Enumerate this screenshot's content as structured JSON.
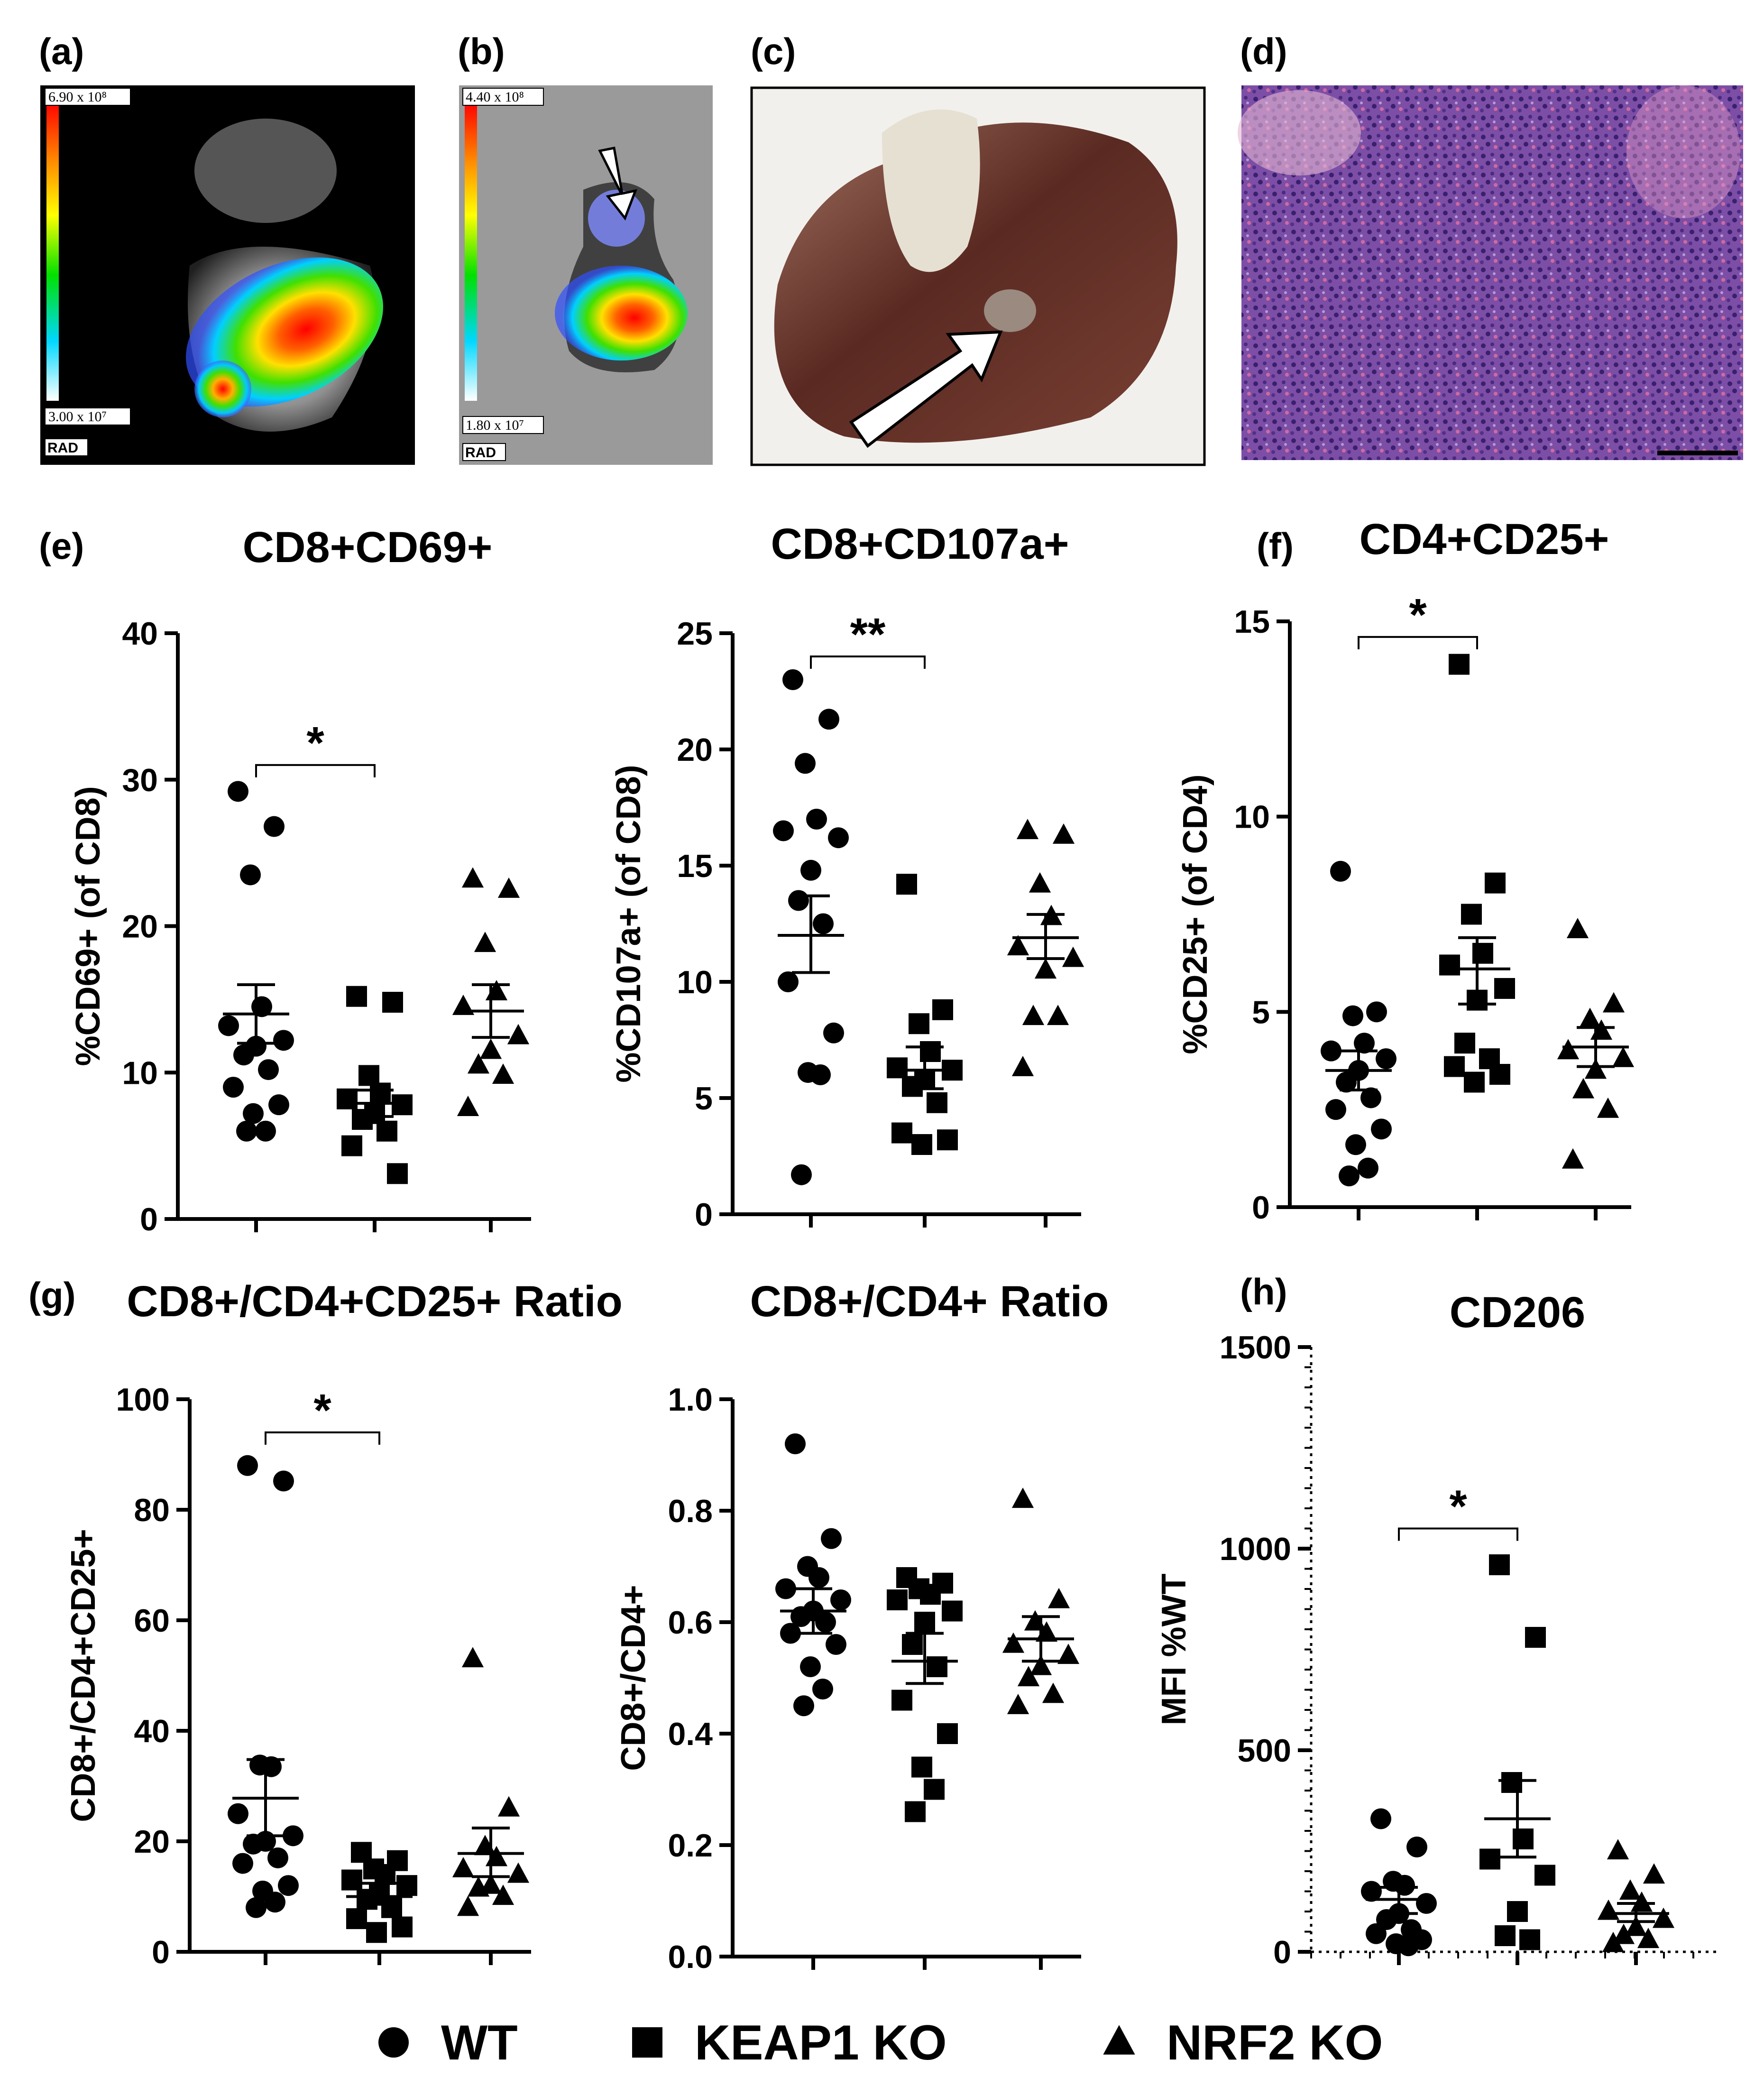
{
  "panels": {
    "a": {
      "label": "(a)",
      "colorbar_max": "6.90 x 10⁸",
      "colorbar_min": "3.00 x 10⁷",
      "unit": "RAD"
    },
    "b": {
      "label": "(b)",
      "colorbar_max": "4.40 x 10⁸",
      "colorbar_min": "1.80 x 10⁷",
      "unit": "RAD"
    },
    "c": {
      "label": "(c)"
    },
    "d": {
      "label": "(d)"
    },
    "e": {
      "label": "(e)"
    },
    "f": {
      "label": "(f)"
    },
    "g": {
      "label": "(g)"
    },
    "h": {
      "label": "(h)"
    }
  },
  "colors": {
    "marker": "#000000",
    "heat": [
      "#ff0000",
      "#ffa500",
      "#ffff00",
      "#00ff00",
      "#00c8ff",
      "#0000ff"
    ]
  },
  "legend": [
    {
      "name": "WT",
      "marker": "circle"
    },
    {
      "name": "KEAP1 KO",
      "marker": "square"
    },
    {
      "name": "NRF2 KO",
      "marker": "triangle"
    }
  ],
  "chart_data": [
    {
      "id": "cd69",
      "type": "scatter",
      "title": "CD8+CD69+",
      "ylabel": "%CD69+ (of  CD8)",
      "ylim": [
        0,
        40
      ],
      "yticks": [
        "0",
        "10",
        "20",
        "30",
        "40"
      ],
      "groups": [
        "WT",
        "KEAP1 KO",
        "NRF2 KO"
      ],
      "values": [
        [
          29.2,
          26.8,
          23.5,
          14.5,
          13.2,
          12.2,
          11.8,
          11.2,
          10.2,
          9.0,
          7.8,
          7.2,
          6.0,
          6.0
        ],
        [
          15.2,
          14.8,
          9.8,
          8.6,
          8.2,
          7.8,
          7.2,
          6.8,
          6.0,
          5.0,
          3.1
        ],
        [
          23.2,
          22.5,
          18.8,
          15.5,
          14.5,
          12.5,
          11.5,
          10.5,
          9.8,
          7.6
        ]
      ],
      "mean": [
        14.0,
        7.9,
        14.2
      ],
      "sem_low": [
        12.0,
        7.0,
        12.4
      ],
      "sem_high": [
        16.0,
        8.8,
        16.0
      ],
      "significance": [
        {
          "from": 0,
          "to": 1,
          "label": "*",
          "y": 31
        }
      ]
    },
    {
      "id": "cd107a",
      "type": "scatter",
      "title": "CD8+CD107a+",
      "ylabel": "%CD107a+ (of  CD8)",
      "ylim": [
        0,
        25
      ],
      "yticks": [
        "0",
        "5",
        "10",
        "15",
        "20",
        "25"
      ],
      "groups": [
        "WT",
        "KEAP1 KO",
        "NRF2 KO"
      ],
      "values": [
        [
          23.0,
          21.3,
          19.4,
          17.0,
          16.5,
          16.2,
          14.8,
          13.5,
          12.5,
          10.0,
          7.8,
          6.1,
          6.0,
          1.7
        ],
        [
          14.2,
          8.8,
          8.2,
          7.0,
          6.3,
          6.2,
          5.8,
          5.5,
          4.8,
          3.5,
          3.2,
          3.0
        ],
        [
          16.5,
          16.3,
          14.2,
          12.8,
          11.5,
          11.0,
          10.5,
          8.5,
          8.5,
          6.3
        ]
      ],
      "mean": [
        12.0,
        6.2,
        11.9
      ],
      "sem_low": [
        10.4,
        5.4,
        11.0
      ],
      "sem_high": [
        13.7,
        7.2,
        12.9
      ],
      "significance": [
        {
          "from": 0,
          "to": 1,
          "label": "**",
          "y": 24
        }
      ]
    },
    {
      "id": "cd25",
      "type": "scatter",
      "title": "CD4+CD25+",
      "ylabel": "%CD25+ (of  CD4)",
      "ylim": [
        0,
        15
      ],
      "yticks": [
        "0",
        "5",
        "10",
        "15"
      ],
      "groups": [
        "WT",
        "KEAP1 KO",
        "NRF2 KO"
      ],
      "values": [
        [
          8.6,
          5.0,
          4.9,
          4.2,
          4.0,
          3.8,
          3.5,
          3.2,
          2.8,
          2.5,
          2.0,
          1.6,
          1.0,
          0.8
        ],
        [
          13.9,
          8.3,
          7.5,
          6.5,
          6.2,
          5.6,
          5.3,
          4.2,
          3.8,
          3.6,
          3.4,
          3.2
        ],
        [
          7.1,
          5.2,
          4.8,
          4.5,
          4.0,
          3.8,
          3.5,
          3.0,
          2.5,
          1.2
        ]
      ],
      "mean": [
        3.5,
        6.1,
        4.1
      ],
      "sem_low": [
        3.0,
        5.2,
        3.6
      ],
      "sem_high": [
        4.0,
        6.9,
        4.6
      ],
      "significance": [
        {
          "from": 0,
          "to": 1,
          "label": "*",
          "y": 14.6
        }
      ]
    },
    {
      "id": "ratio_cd25",
      "type": "scatter",
      "title": "CD8+/CD4+CD25+ Ratio",
      "ylabel": "CD8+/CD4+CD25+",
      "ylim": [
        0,
        100
      ],
      "yticks": [
        "0",
        "20",
        "40",
        "60",
        "80",
        "100"
      ],
      "groups": [
        "WT",
        "KEAP1 KO",
        "NRF2 KO"
      ],
      "values": [
        [
          88.0,
          85.2,
          33.8,
          33.5,
          25.0,
          21.0,
          20.0,
          19.5,
          17.0,
          16.0,
          12.0,
          11.0,
          9.0,
          8.0
        ],
        [
          18.0,
          16.5,
          15.0,
          14.0,
          13.0,
          12.0,
          10.5,
          9.5,
          8.0,
          6.0,
          4.5,
          3.5
        ],
        [
          53.0,
          26.0,
          19.0,
          17.0,
          15.0,
          14.0,
          12.0,
          11.5,
          10.0,
          8.0
        ]
      ],
      "mean": [
        27.8,
        10.0,
        17.8
      ],
      "sem_low": [
        21.0,
        8.6,
        13.6
      ],
      "sem_high": [
        34.8,
        12.4,
        22.4
      ],
      "significance": [
        {
          "from": 0,
          "to": 1,
          "label": "*",
          "y": 94
        }
      ]
    },
    {
      "id": "ratio_cd4",
      "type": "scatter",
      "title": "CD8+/CD4+ Ratio",
      "ylabel": "CD8+/CD4+",
      "ylim": [
        0,
        1.0
      ],
      "yticks": [
        "0.0",
        "0.2",
        "0.4",
        "0.6",
        "0.8",
        "1.0"
      ],
      "groups": [
        "WT",
        "KEAP1 KO",
        "NRF2 KO"
      ],
      "values": [
        [
          0.92,
          0.75,
          0.7,
          0.68,
          0.66,
          0.64,
          0.62,
          0.61,
          0.6,
          0.58,
          0.56,
          0.52,
          0.48,
          0.45
        ],
        [
          0.68,
          0.67,
          0.66,
          0.65,
          0.64,
          0.62,
          0.6,
          0.56,
          0.52,
          0.46,
          0.4,
          0.34,
          0.3,
          0.26
        ],
        [
          0.82,
          0.64,
          0.6,
          0.58,
          0.56,
          0.54,
          0.52,
          0.5,
          0.47,
          0.45
        ]
      ],
      "mean": [
        0.62,
        0.53,
        0.57
      ],
      "sem_low": [
        0.58,
        0.49,
        0.53
      ],
      "sem_high": [
        0.66,
        0.58,
        0.61
      ],
      "significance": []
    },
    {
      "id": "cd206",
      "type": "scatter",
      "title": "CD206",
      "ylabel": "MFI %WT",
      "ylim": [
        0,
        1500
      ],
      "yticks": [
        "0",
        "500",
        "1000",
        "1500"
      ],
      "groups": [
        "WT",
        "KEAP1 KO",
        "NRF2 KO"
      ],
      "values": [
        [
          330,
          260,
          175,
          165,
          150,
          120,
          95,
          80,
          55,
          45,
          30,
          20,
          15
        ],
        [
          960,
          780,
          420,
          280,
          230,
          190,
          100,
          40,
          30
        ],
        [
          250,
          190,
          150,
          120,
          100,
          80,
          60,
          40,
          30,
          20
        ]
      ],
      "mean": [
        130,
        330,
        95
      ],
      "sem_low": [
        95,
        235,
        75
      ],
      "sem_high": [
        160,
        425,
        120
      ],
      "significance": [
        {
          "from": 0,
          "to": 1,
          "label": "*",
          "y": 1050
        }
      ]
    }
  ]
}
